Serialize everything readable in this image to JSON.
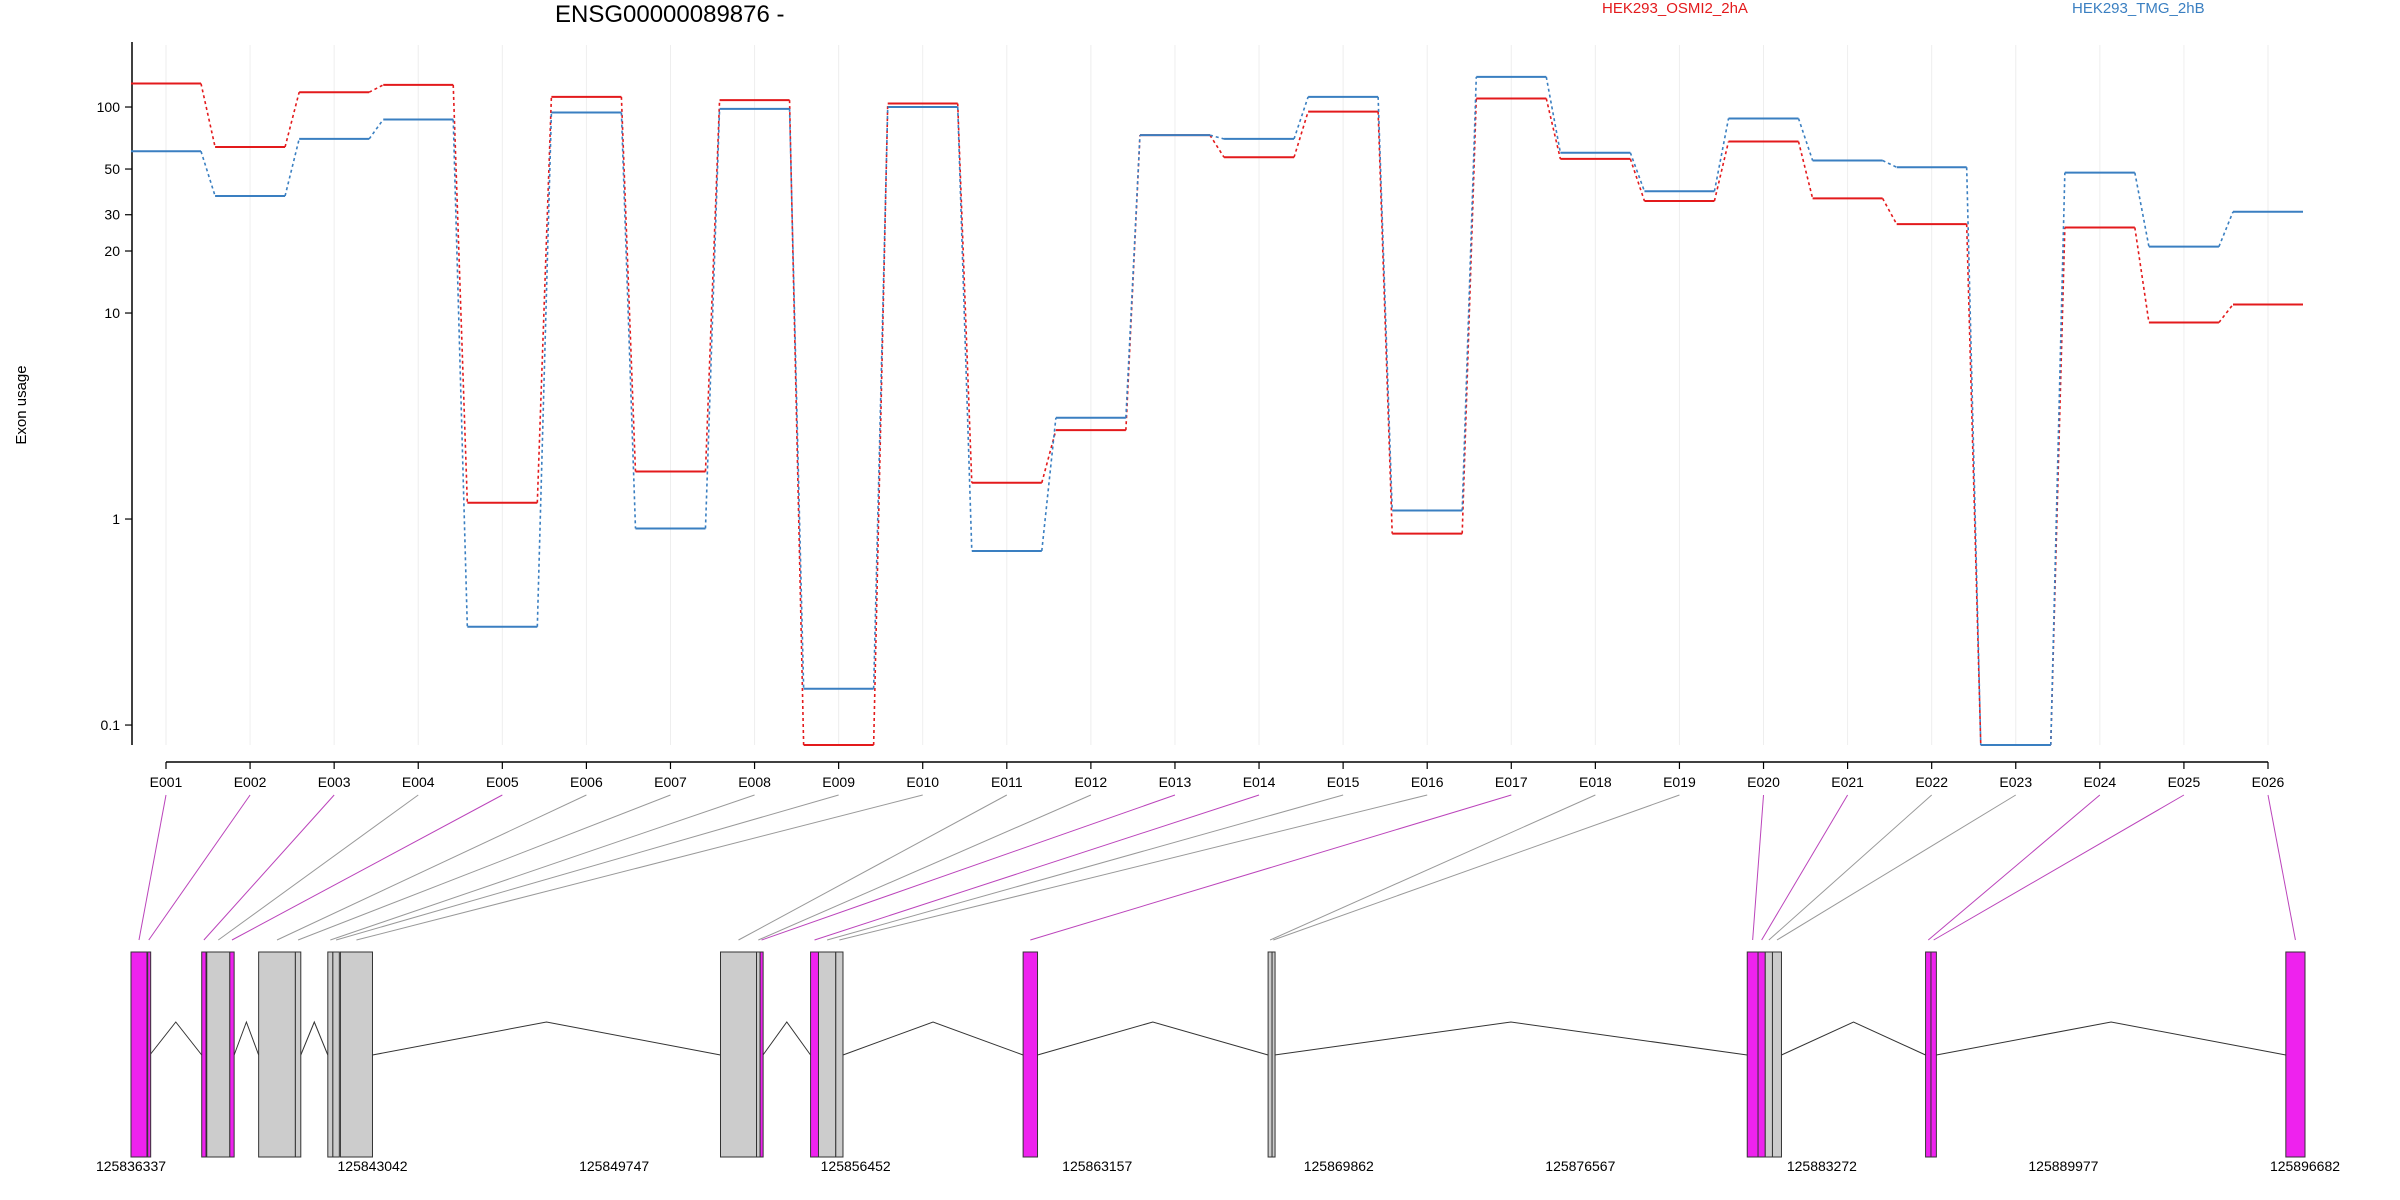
{
  "chart_data": {
    "type": "line",
    "title": "ENSG00000089876 -",
    "ylabel": "Exon usage",
    "y_scale": "log",
    "ylim": [
      0.08,
      200
    ],
    "yticks": [
      {
        "value": 0.1,
        "label": "0.1"
      },
      {
        "value": 1,
        "label": "1"
      },
      {
        "value": 10,
        "label": "10"
      },
      {
        "value": 20,
        "label": "20"
      },
      {
        "value": 30,
        "label": "30"
      },
      {
        "value": 50,
        "label": "50"
      },
      {
        "value": 100,
        "label": "100"
      }
    ],
    "categories": [
      "E001",
      "E002",
      "E003",
      "E004",
      "E005",
      "E006",
      "E007",
      "E008",
      "E009",
      "E010",
      "E011",
      "E012",
      "E013",
      "E014",
      "E015",
      "E016",
      "E017",
      "E018",
      "E019",
      "E020",
      "E021",
      "E022",
      "E023",
      "E024",
      "E025",
      "E026"
    ],
    "series": [
      {
        "name": "HEK293_OSMI2_2hA",
        "color": "#e31a1c",
        "values": [
          130,
          64,
          118,
          128,
          1.2,
          112,
          1.7,
          108,
          0.08,
          104,
          1.5,
          2.7,
          73,
          57,
          95,
          0.85,
          110,
          56,
          35,
          68,
          36,
          27,
          0.08,
          26,
          9,
          11
        ]
      },
      {
        "name": "HEK293_TMG_2hB",
        "color": "#3a7fc1",
        "values": [
          61,
          37,
          70,
          87,
          0.3,
          94,
          0.9,
          98,
          0.15,
          100,
          0.7,
          3.1,
          73,
          70,
          112,
          1.1,
          140,
          60,
          39,
          88,
          55,
          51,
          0.08,
          48,
          21,
          31
        ]
      }
    ],
    "genome_axis": {
      "tick_labels": [
        "125836337",
        "125843042",
        "125849747",
        "125856452",
        "125863157",
        "125869862",
        "125876567",
        "125883272",
        "125889977",
        "125896682"
      ]
    },
    "exon_segments": [
      {
        "exon": "E001",
        "start": 125836337,
        "end": 125836780,
        "differential": true
      },
      {
        "exon": "E002",
        "start": 125836800,
        "end": 125836860,
        "differential": true
      },
      {
        "exon": "E003",
        "start": 125838300,
        "end": 125838420,
        "differential": true
      },
      {
        "exon": "E004",
        "start": 125838440,
        "end": 125839080,
        "differential": false
      },
      {
        "exon": "E005",
        "start": 125839080,
        "end": 125839200,
        "differential": true
      },
      {
        "exon": "E006",
        "start": 125839880,
        "end": 125840900,
        "differential": false
      },
      {
        "exon": "E007",
        "start": 125840900,
        "end": 125841050,
        "differential": false
      },
      {
        "exon": "E008",
        "start": 125841800,
        "end": 125841940,
        "differential": false
      },
      {
        "exon": "E009",
        "start": 125841940,
        "end": 125842120,
        "differential": false
      },
      {
        "exon": "E010",
        "start": 125842150,
        "end": 125843040,
        "differential": false
      },
      {
        "exon": "E011",
        "start": 125852700,
        "end": 125853700,
        "differential": false
      },
      {
        "exon": "E012",
        "start": 125853700,
        "end": 125853800,
        "differential": false
      },
      {
        "exon": "E013",
        "start": 125853800,
        "end": 125853880,
        "differential": true
      },
      {
        "exon": "E014",
        "start": 125855200,
        "end": 125855420,
        "differential": true
      },
      {
        "exon": "E015",
        "start": 125855420,
        "end": 125855900,
        "differential": false
      },
      {
        "exon": "E016",
        "start": 125855900,
        "end": 125856100,
        "differential": false
      },
      {
        "exon": "E017",
        "start": 125861100,
        "end": 125861500,
        "differential": true
      },
      {
        "exon": "E018",
        "start": 125867900,
        "end": 125868010,
        "differential": false
      },
      {
        "exon": "E019",
        "start": 125868010,
        "end": 125868080,
        "differential": false
      },
      {
        "exon": "E020",
        "start": 125881200,
        "end": 125881500,
        "differential": true
      },
      {
        "exon": "E021",
        "start": 125881500,
        "end": 125881700,
        "differential": true
      },
      {
        "exon": "E022",
        "start": 125881700,
        "end": 125881900,
        "differential": false
      },
      {
        "exon": "E023",
        "start": 125881900,
        "end": 125882150,
        "differential": false
      },
      {
        "exon": "E024",
        "start": 125886150,
        "end": 125886300,
        "differential": true
      },
      {
        "exon": "E025",
        "start": 125886300,
        "end": 125886450,
        "differential": true
      },
      {
        "exon": "E026",
        "start": 125896150,
        "end": 125896682,
        "differential": true
      }
    ],
    "colors": {
      "differential_exon": "#ee22ee",
      "other_exon": "#cccccc",
      "gridline": "#eeeeee",
      "connector_differential": "#bb44bb",
      "connector_other": "#999999"
    }
  }
}
